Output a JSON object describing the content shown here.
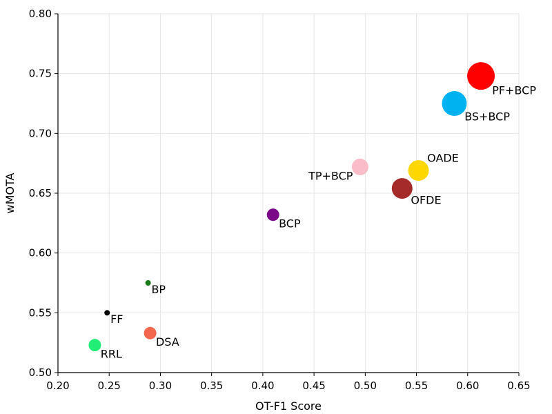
{
  "chart_data": {
    "type": "scatter",
    "title": "",
    "xlabel": "OT-F1 Score",
    "ylabel": "wMOTA",
    "xlim": [
      0.2,
      0.65
    ],
    "ylim": [
      0.5,
      0.8
    ],
    "xticks": [
      "0.20",
      "0.25",
      "0.30",
      "0.35",
      "0.40",
      "0.45",
      "0.50",
      "0.55",
      "0.60",
      "0.65"
    ],
    "yticks": [
      "0.50",
      "0.55",
      "0.60",
      "0.65",
      "0.70",
      "0.75",
      "0.80"
    ],
    "grid": true,
    "points": [
      {
        "label": "RRL",
        "x": 0.236,
        "y": 0.523,
        "size": 3,
        "color": "#22ee77",
        "label_pos": "bottom-right"
      },
      {
        "label": "FF",
        "x": 0.248,
        "y": 0.55,
        "size": 1,
        "color": "#000000",
        "label_pos": "bottom-right"
      },
      {
        "label": "BP",
        "x": 0.288,
        "y": 0.575,
        "size": 1,
        "color": "#1a7a1a",
        "label_pos": "bottom-right"
      },
      {
        "label": "DSA",
        "x": 0.29,
        "y": 0.533,
        "size": 3,
        "color": "#f4674f",
        "label_pos": "bottom-right"
      },
      {
        "label": "BCP",
        "x": 0.41,
        "y": 0.632,
        "size": 3,
        "color": "#7a0a87",
        "label_pos": "bottom-right"
      },
      {
        "label": "TP+BCP",
        "x": 0.495,
        "y": 0.672,
        "size": 4,
        "color": "#f9bcc8",
        "label_pos": "bottom-left"
      },
      {
        "label": "OFDE",
        "x": 0.536,
        "y": 0.654,
        "size": 5,
        "color": "#a52a2a",
        "label_pos": "bottom-right"
      },
      {
        "label": "OADE",
        "x": 0.552,
        "y": 0.669,
        "size": 5,
        "color": "#ffd700",
        "label_pos": "top-right"
      },
      {
        "label": "BS+BCP",
        "x": 0.587,
        "y": 0.725,
        "size": 6,
        "color": "#00b2f0",
        "label_pos": "bottom-right"
      },
      {
        "label": "PF+BCP",
        "x": 0.613,
        "y": 0.748,
        "size": 7,
        "color": "#ff0000",
        "label_pos": "bottom-right"
      }
    ]
  }
}
